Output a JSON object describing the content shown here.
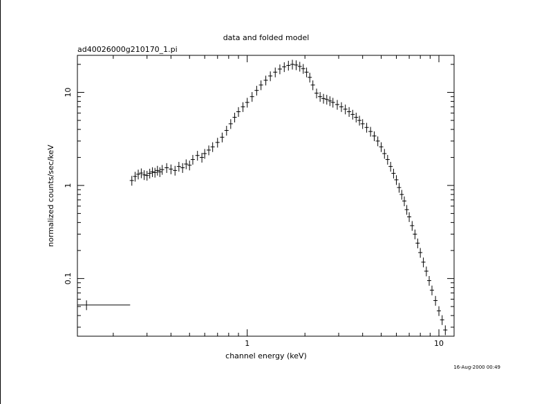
{
  "chart_data": {
    "type": "scatter",
    "title": "data and folded model",
    "subtitle": "ad40026000g210170_1.pi",
    "xlabel": "channel energy (keV)",
    "ylabel": "normalized counts/sec/keV",
    "timestamp": "16-Aug-2000 00:49",
    "xscale": "log",
    "yscale": "log",
    "xlim": [
      0.13,
      12.0
    ],
    "ylim": [
      0.024,
      25.0
    ],
    "x_ticks": [
      {
        "value": 1,
        "label": "1"
      },
      {
        "value": 10,
        "label": "10"
      }
    ],
    "y_ticks": [
      {
        "value": 0.1,
        "label": "0.1"
      },
      {
        "value": 1,
        "label": "1"
      },
      {
        "value": 10,
        "label": "10"
      }
    ],
    "grid": false,
    "legend": "none",
    "color": "#000000",
    "series": [
      {
        "marker": "crosshair-errorbars",
        "points": [
          {
            "x": 0.145,
            "y": 0.052,
            "xlo": 0.13,
            "xhi": 0.245
          },
          {
            "x": 0.25,
            "y": 1.13
          },
          {
            "x": 0.26,
            "y": 1.25
          },
          {
            "x": 0.27,
            "y": 1.32
          },
          {
            "x": 0.28,
            "y": 1.36
          },
          {
            "x": 0.29,
            "y": 1.3
          },
          {
            "x": 0.3,
            "y": 1.28
          },
          {
            "x": 0.31,
            "y": 1.35
          },
          {
            "x": 0.32,
            "y": 1.4
          },
          {
            "x": 0.33,
            "y": 1.38
          },
          {
            "x": 0.34,
            "y": 1.45
          },
          {
            "x": 0.35,
            "y": 1.4
          },
          {
            "x": 0.36,
            "y": 1.48
          },
          {
            "x": 0.38,
            "y": 1.55
          },
          {
            "x": 0.4,
            "y": 1.5
          },
          {
            "x": 0.42,
            "y": 1.45
          },
          {
            "x": 0.44,
            "y": 1.6
          },
          {
            "x": 0.46,
            "y": 1.55
          },
          {
            "x": 0.48,
            "y": 1.7
          },
          {
            "x": 0.5,
            "y": 1.65
          },
          {
            "x": 0.52,
            "y": 1.9
          },
          {
            "x": 0.55,
            "y": 2.1
          },
          {
            "x": 0.58,
            "y": 2.0
          },
          {
            "x": 0.6,
            "y": 2.2
          },
          {
            "x": 0.63,
            "y": 2.4
          },
          {
            "x": 0.66,
            "y": 2.6
          },
          {
            "x": 0.7,
            "y": 2.9
          },
          {
            "x": 0.74,
            "y": 3.3
          },
          {
            "x": 0.78,
            "y": 3.9
          },
          {
            "x": 0.82,
            "y": 4.6
          },
          {
            "x": 0.86,
            "y": 5.4
          },
          {
            "x": 0.9,
            "y": 6.2
          },
          {
            "x": 0.95,
            "y": 7.0
          },
          {
            "x": 1.0,
            "y": 7.8
          },
          {
            "x": 1.06,
            "y": 9.0
          },
          {
            "x": 1.12,
            "y": 10.5
          },
          {
            "x": 1.18,
            "y": 12.0
          },
          {
            "x": 1.25,
            "y": 13.5
          },
          {
            "x": 1.32,
            "y": 15.0
          },
          {
            "x": 1.4,
            "y": 16.5
          },
          {
            "x": 1.48,
            "y": 17.8
          },
          {
            "x": 1.56,
            "y": 18.8
          },
          {
            "x": 1.64,
            "y": 19.5
          },
          {
            "x": 1.72,
            "y": 20.0
          },
          {
            "x": 1.8,
            "y": 19.7
          },
          {
            "x": 1.88,
            "y": 19.0
          },
          {
            "x": 1.96,
            "y": 18.0
          },
          {
            "x": 2.04,
            "y": 16.5
          },
          {
            "x": 2.12,
            "y": 14.5
          },
          {
            "x": 2.2,
            "y": 12.0
          },
          {
            "x": 2.3,
            "y": 9.8
          },
          {
            "x": 2.4,
            "y": 9.0
          },
          {
            "x": 2.5,
            "y": 8.6
          },
          {
            "x": 2.6,
            "y": 8.4
          },
          {
            "x": 2.7,
            "y": 8.1
          },
          {
            "x": 2.8,
            "y": 7.8
          },
          {
            "x": 2.95,
            "y": 7.4
          },
          {
            "x": 3.1,
            "y": 7.0
          },
          {
            "x": 3.25,
            "y": 6.6
          },
          {
            "x": 3.4,
            "y": 6.2
          },
          {
            "x": 3.55,
            "y": 5.8
          },
          {
            "x": 3.7,
            "y": 5.4
          },
          {
            "x": 3.85,
            "y": 5.0
          },
          {
            "x": 4.0,
            "y": 4.6
          },
          {
            "x": 4.2,
            "y": 4.2
          },
          {
            "x": 4.4,
            "y": 3.8
          },
          {
            "x": 4.6,
            "y": 3.4
          },
          {
            "x": 4.8,
            "y": 3.0
          },
          {
            "x": 5.0,
            "y": 2.6
          },
          {
            "x": 5.2,
            "y": 2.2
          },
          {
            "x": 5.4,
            "y": 1.9
          },
          {
            "x": 5.6,
            "y": 1.6
          },
          {
            "x": 5.8,
            "y": 1.35
          },
          {
            "x": 6.0,
            "y": 1.15
          },
          {
            "x": 6.2,
            "y": 0.95
          },
          {
            "x": 6.4,
            "y": 0.8
          },
          {
            "x": 6.6,
            "y": 0.68
          },
          {
            "x": 6.8,
            "y": 0.55
          },
          {
            "x": 7.0,
            "y": 0.46
          },
          {
            "x": 7.25,
            "y": 0.37
          },
          {
            "x": 7.5,
            "y": 0.3
          },
          {
            "x": 7.75,
            "y": 0.24
          },
          {
            "x": 8.0,
            "y": 0.19
          },
          {
            "x": 8.3,
            "y": 0.15
          },
          {
            "x": 8.6,
            "y": 0.12
          },
          {
            "x": 8.9,
            "y": 0.095
          },
          {
            "x": 9.2,
            "y": 0.075
          },
          {
            "x": 9.6,
            "y": 0.058
          },
          {
            "x": 10.0,
            "y": 0.045
          },
          {
            "x": 10.4,
            "y": 0.036
          },
          {
            "x": 10.8,
            "y": 0.028
          }
        ]
      }
    ]
  }
}
